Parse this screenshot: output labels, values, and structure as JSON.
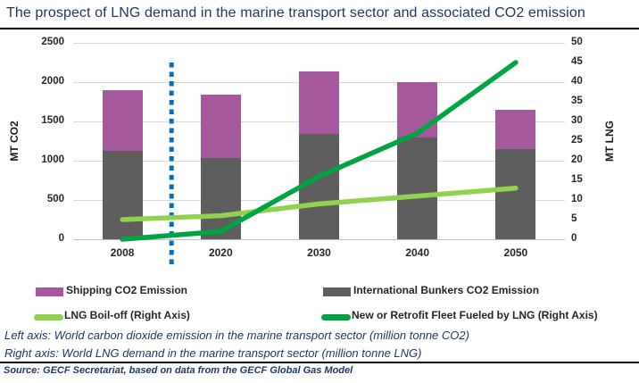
{
  "title": "The prospect of LNG demand in the marine transport sector and associated CO2 emission",
  "chart_data": {
    "type": "combo-bar-line",
    "categories": [
      "2008",
      "2020",
      "2030",
      "2040",
      "2050"
    ],
    "bar_series": [
      {
        "name": "International Bunkers CO2 Emission",
        "axis": "left",
        "color": "#5E5E5E",
        "values": [
          1120,
          1030,
          1340,
          1300,
          1150
        ]
      },
      {
        "name": "Shipping CO2 Emission",
        "axis": "left",
        "color": "#A6589E",
        "values": [
          780,
          810,
          800,
          700,
          500
        ]
      }
    ],
    "line_series": [
      {
        "name": "LNG Boil-off (Right Axis)",
        "axis": "right",
        "color": "#92D050",
        "values": [
          5,
          6,
          9,
          11,
          13
        ]
      },
      {
        "name": "New or Retrofit Fleet Fueled by LNG (Right Axis)",
        "axis": "right",
        "color": "#00A443",
        "values": [
          0,
          2,
          16,
          27,
          45
        ]
      }
    ],
    "left_axis": {
      "label": "MT CO2",
      "min": 0,
      "max": 2500,
      "step": 500
    },
    "right_axis": {
      "label": "MT LNG",
      "min": 0,
      "max": 50,
      "step": 5
    },
    "divider": {
      "after_category": "2008",
      "style": "dotted",
      "color": "#0070C0"
    },
    "grid": true,
    "legend_position": "bottom",
    "bar_totals": [
      1900,
      1840,
      2140,
      2000,
      1650
    ]
  },
  "legend": {
    "items": [
      {
        "label": "Shipping CO2 Emission",
        "swatch": "bar",
        "color": "#A6589E"
      },
      {
        "label": "International Bunkers CO2 Emission",
        "swatch": "bar",
        "color": "#5E5E5E"
      },
      {
        "label": "LNG Boil-off (Right Axis)",
        "swatch": "line",
        "color": "#92D050"
      },
      {
        "label": "New or Retrofit Fleet Fueled by LNG (Right Axis)",
        "swatch": "line",
        "color": "#00A443"
      }
    ]
  },
  "notes": {
    "left_axis": "Left axis: World carbon dioxide emission in the marine transport sector (million tonne CO2)",
    "right_axis": "Right axis: World LNG demand in the marine transport sector (million tonne LNG)",
    "source": "Source: GECF Secretariat, based on data from the GECF Global Gas Model"
  },
  "colors": {
    "title_text": "#1F3864",
    "note_text": "#1F3864",
    "grid": "#D9D9D9",
    "axis_line": "#BFBFBF",
    "tick_text": "#262626"
  }
}
